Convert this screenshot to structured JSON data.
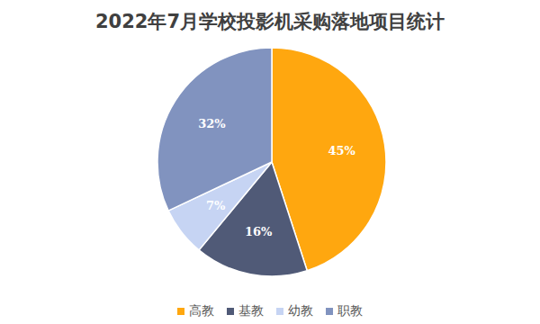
{
  "chart_data": {
    "type": "pie",
    "title": "2022年7月学校投影机采购落地项目统计",
    "categories": [
      "高教",
      "基教",
      "幼教",
      "职教"
    ],
    "values": [
      45,
      16,
      7,
      32
    ],
    "value_labels": [
      "45%",
      "16%",
      "7%",
      "32%"
    ],
    "colors": [
      "#ffa70f",
      "#505a77",
      "#c6d4f3",
      "#8193bf"
    ],
    "data_labels": true,
    "legend": "bottom"
  }
}
